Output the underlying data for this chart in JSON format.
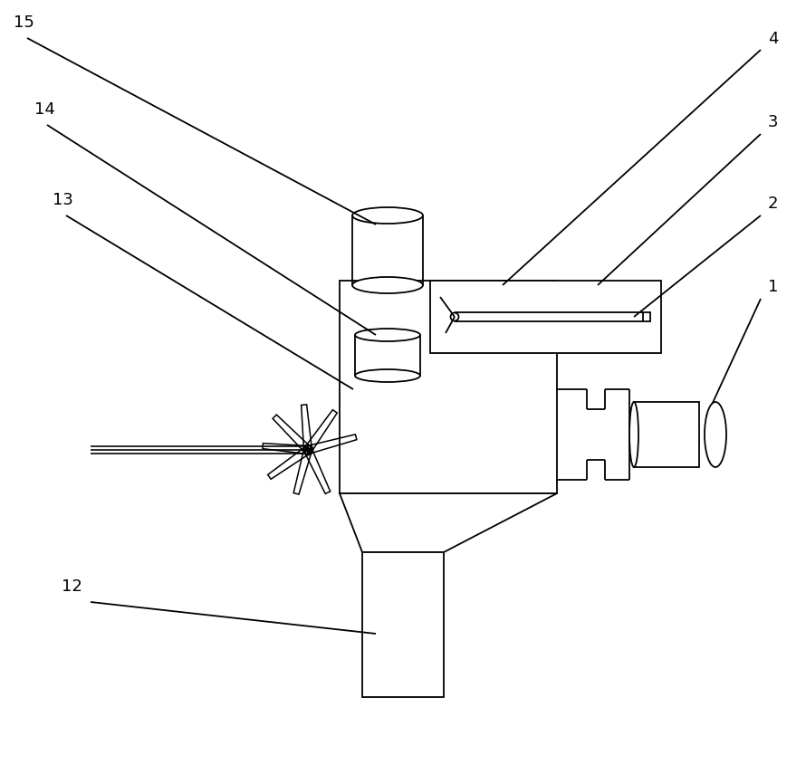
{
  "bg_color": "#ffffff",
  "line_color": "#000000",
  "lw": 1.3,
  "fig_width": 8.9,
  "fig_height": 8.55,
  "label_fs": 13
}
